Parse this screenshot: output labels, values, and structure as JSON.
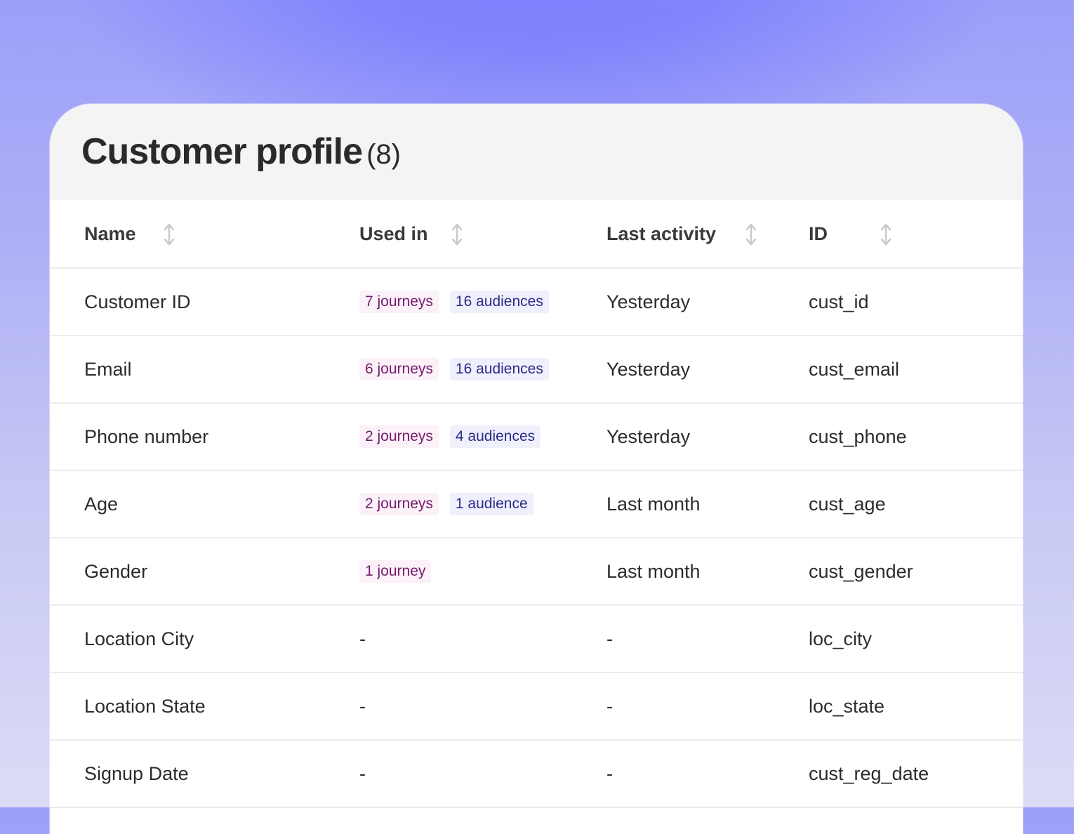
{
  "header": {
    "title": "Customer profile",
    "count": "(8)"
  },
  "columns": {
    "name": "Name",
    "used_in": "Used in",
    "last_activity": "Last activity",
    "id": "ID"
  },
  "rows": [
    {
      "name": "Customer ID",
      "journeys": "7 journeys",
      "audiences": "16 audiences",
      "last_activity": "Yesterday",
      "id": "cust_id"
    },
    {
      "name": "Email",
      "journeys": "6 journeys",
      "audiences": "16 audiences",
      "last_activity": "Yesterday",
      "id": "cust_email"
    },
    {
      "name": "Phone number",
      "journeys": "2 journeys",
      "audiences": "4 audiences",
      "last_activity": "Yesterday",
      "id": "cust_phone"
    },
    {
      "name": "Age",
      "journeys": "2 journeys",
      "audiences": "1 audience",
      "last_activity": "Last month",
      "id": "cust_age"
    },
    {
      "name": "Gender",
      "journeys": "1 journey",
      "audiences": "",
      "last_activity": "Last month",
      "id": "cust_gender"
    },
    {
      "name": "Location City",
      "used_in_text": "-",
      "last_activity": "-",
      "id": "loc_city"
    },
    {
      "name": "Location State",
      "used_in_text": "-",
      "last_activity": "-",
      "id": "loc_state"
    },
    {
      "name": "Signup Date",
      "used_in_text": "-",
      "last_activity": "-",
      "id": "cust_reg_date"
    }
  ],
  "icons": {
    "sort": "sort-arrows-icon"
  },
  "colors": {
    "journey_text": "#741c6e",
    "journey_bg": "#fbf1f8",
    "audience_text": "#2b2b8a",
    "audience_bg": "#eff0fb"
  }
}
